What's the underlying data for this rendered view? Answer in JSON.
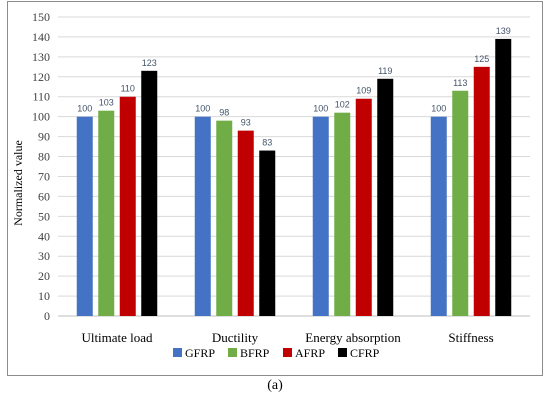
{
  "chart_data": {
    "type": "bar",
    "categories": [
      "Ultimate load",
      "Ductility",
      "Energy absorption",
      "Stiffness"
    ],
    "series": [
      {
        "name": "GFRP",
        "color": "#4472c4",
        "values": [
          100,
          100,
          100,
          100
        ]
      },
      {
        "name": "BFRP",
        "color": "#70ad47",
        "values": [
          103,
          98,
          102,
          113
        ]
      },
      {
        "name": "AFRP",
        "color": "#c00000",
        "values": [
          110,
          93,
          109,
          125
        ]
      },
      {
        "name": "CFRP",
        "color": "#000000",
        "values": [
          123,
          83,
          119,
          139
        ]
      }
    ],
    "ylabel": "Normalized value",
    "ylim": [
      0,
      150
    ],
    "ytick_step": 10,
    "grid": true,
    "legend_position": "bottom"
  },
  "caption": "(a)"
}
